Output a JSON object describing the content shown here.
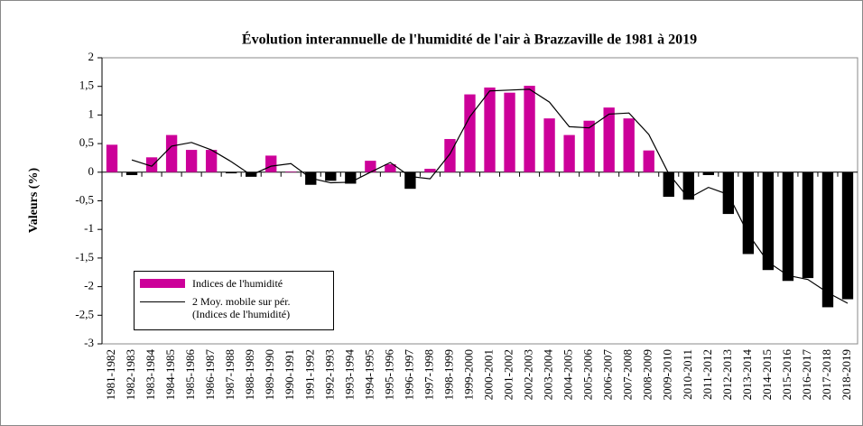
{
  "chart_data": {
    "type": "bar-line",
    "title": "Évolution interannuelle de l'humidité de l'air à Brazzaville de 1981 à 2019",
    "y_label": "Valeurs (%)",
    "categories": [
      "1981-1982",
      "1982-1983",
      "1983-1984",
      "1984-1985",
      "1985-1986",
      "1986-1987",
      "1987-1988",
      "1988-1989",
      "1989-1990",
      "1990-1991",
      "1991-1992",
      "1992-1993",
      "1993-1994",
      "1994-1995",
      "1995-1996",
      "1996-1997",
      "1997-1998",
      "1998-1999",
      "1999-2000",
      "2000-2001",
      "2001-2002",
      "2002-2003",
      "2003-2004",
      "2004-2005",
      "2005-2006",
      "2006-2007",
      "2007-2008",
      "2008-2009",
      "2009-2010",
      "2010-2011",
      "2011-2012",
      "2012-2013",
      "2013-2014",
      "2014-2015",
      "2015-2016",
      "2016-2017",
      "2017-2018",
      "2018-2019"
    ],
    "series": [
      {
        "name": "Indices de l'humidité",
        "kind": "bar",
        "color": "#cc0099",
        "negative_color": "#000000",
        "values": [
          0.48,
          -0.05,
          0.26,
          0.65,
          0.39,
          0.39,
          -0.02,
          -0.08,
          0.29,
          0.01,
          -0.22,
          -0.15,
          -0.2,
          0.2,
          0.14,
          -0.29,
          0.06,
          0.58,
          1.36,
          1.48,
          1.39,
          1.51,
          0.94,
          0.65,
          0.9,
          1.13,
          0.94,
          0.38,
          -0.43,
          -0.48,
          -0.05,
          -0.73,
          -1.43,
          -1.71,
          -1.9,
          -1.85,
          -2.36,
          -2.22
        ]
      },
      {
        "name": "2 Moy. mobile sur pér.\n(Indices de l'humidité)",
        "kind": "line",
        "color": "#000000",
        "values": [
          null,
          0.215,
          0.105,
          0.455,
          0.52,
          0.39,
          0.185,
          -0.05,
          0.105,
          0.15,
          -0.105,
          -0.185,
          -0.175,
          0,
          0.17,
          -0.075,
          -0.115,
          0.32,
          0.97,
          1.42,
          1.435,
          1.45,
          1.225,
          0.795,
          0.775,
          1.015,
          1.035,
          0.66,
          -0.025,
          -0.455,
          -0.265,
          -0.39,
          -1.08,
          -1.57,
          -1.805,
          -1.875,
          -2.105,
          -2.29
        ]
      }
    ],
    "ylim": [
      -3,
      2
    ],
    "yticks": [
      {
        "value": -3,
        "label": "-3"
      },
      {
        "value": -2.5,
        "label": "-2,5"
      },
      {
        "value": -2,
        "label": "-2"
      },
      {
        "value": -1.5,
        "label": "-1,5"
      },
      {
        "value": -1,
        "label": "-1"
      },
      {
        "value": -0.5,
        "label": "-0,5"
      },
      {
        "value": 0,
        "label": "0"
      },
      {
        "value": 0.5,
        "label": "0,5"
      },
      {
        "value": 1,
        "label": "1"
      },
      {
        "value": 1.5,
        "label": "1,5"
      },
      {
        "value": 2,
        "label": "2"
      }
    ],
    "grid": false
  }
}
